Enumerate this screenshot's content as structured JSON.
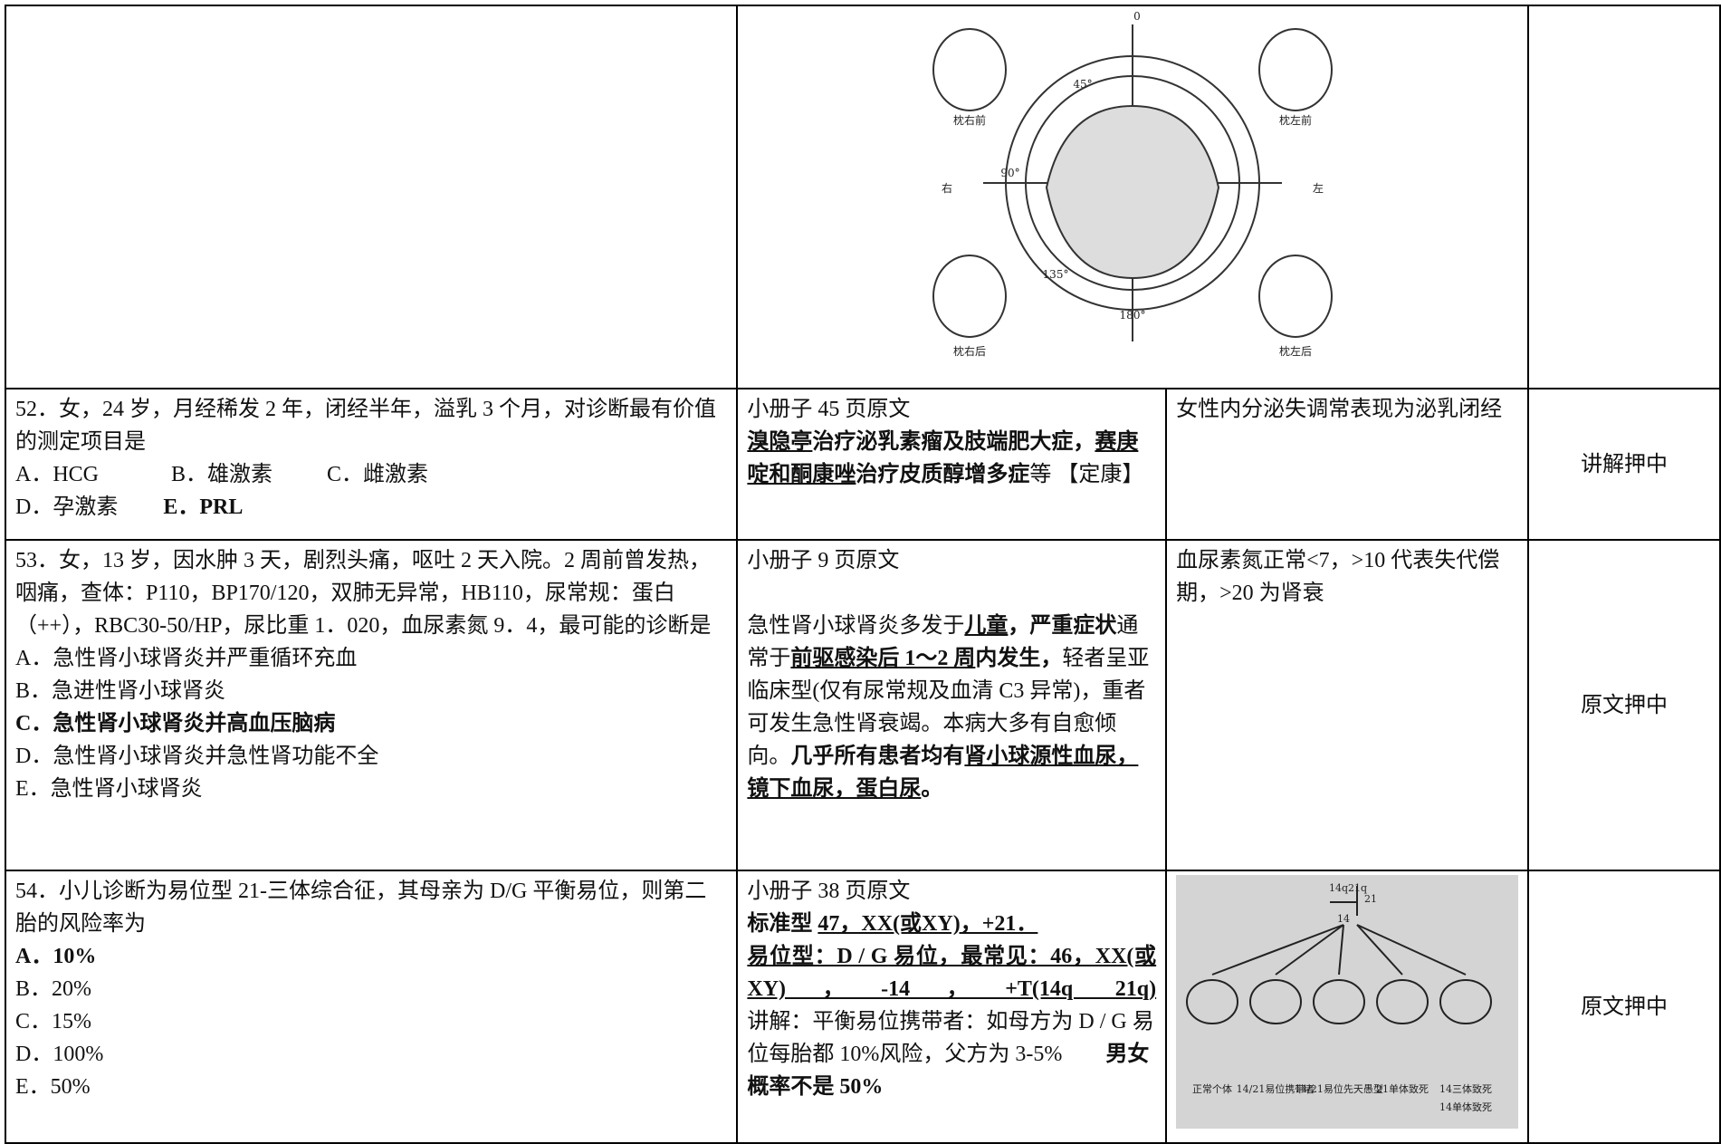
{
  "figure_top": {
    "labels": [
      "右",
      "左",
      "枕右前",
      "枕左前",
      "枕右后",
      "枕左后",
      "0",
      "45°",
      "90°",
      "135°",
      "180°"
    ]
  },
  "figure_bottom": {
    "labels": [
      "14q21q",
      "21",
      "14",
      "正常个体",
      "14/21易位携带者",
      "14/21易位先天愚型",
      "21单体致死",
      "14三体致死",
      "14单体致死"
    ]
  },
  "rows": [
    {
      "question": [
        "52．女，24 岁，月经稀发 2 年，闭经半年，溢乳 3 个月，对诊断最有价值的测定项目是",
        "A．HCG",
        "B．雄激素",
        "C．雌激素",
        "D．孕激素",
        "E．PRL"
      ],
      "source": [
        "小册子 45 页原文",
        "溴隐亭",
        "治疗泌乳素瘤及肢端肥大症，",
        "赛庚啶和酮康唑",
        "治疗皮质醇增多症",
        "等 【定康】"
      ],
      "note": "女性内分泌失调常表现为泌乳闭经",
      "result": "讲解押中"
    },
    {
      "question": [
        "53．女，13 岁，因水肿 3 天，剧烈头痛，呕吐 2 天入院。2 周前曾发热，咽痛，查体：P110，BP170/120，双肺无异常，HB110，尿常规：蛋白（++），RBC30-50/HP，尿比重 1．020，血尿素氮 9．4，最可能的诊断是",
        "A．急性肾小球肾炎并严重循环充血",
        "B．急进性肾小球肾炎",
        "C．急性肾小球肾炎并高血压脑病",
        "D．急性肾小球肾炎并急性肾功能不全",
        "E．急性肾小球肾炎"
      ],
      "source": [
        "小册子 9 页原文",
        "急性肾小球肾炎多发于",
        "儿童",
        "，严重症状",
        "通常于",
        "前驱感染后 1～2 周",
        "内发生，",
        "轻者呈亚临床型(仅有尿常规及血清 C3 异常)，重者可发生急性肾衰竭。本病大多有自愈倾向。",
        "几乎所有患者均有",
        "肾小球源性血尿，镜下血尿，蛋白尿",
        "。"
      ],
      "note": "血尿素氮正常<7，>10 代表失代偿期，>20 为肾衰",
      "result": "原文押中"
    },
    {
      "question": [
        "54．小儿诊断为易位型 21-三体综合征，其母亲为 D/G 平衡易位，则第二胎的风险率为",
        "A．10%",
        "B．20%",
        "C．15%",
        "D．100%",
        "E．50%"
      ],
      "source": [
        "小册子 38 页原文",
        "标准型 ",
        "47，XX(或XY)，+21．",
        "易位型：D / G 易位，最常见：46，XX(或XY)，-14，+T(14q 21q)",
        "讲解：平衡易位携带者：如母方为 D / G 易位每胎都 10%风险，父方为 3-5%　　",
        "男女概率不是 50%"
      ],
      "result": "原文押中"
    }
  ]
}
